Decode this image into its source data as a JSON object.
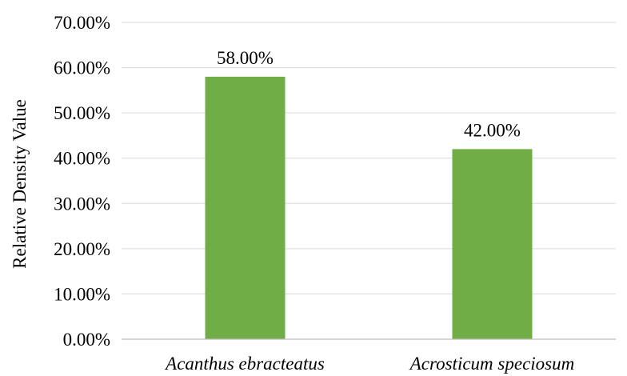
{
  "chart_data": {
    "type": "bar",
    "categories": [
      "Acanthus ebracteatus",
      "Acrosticum speciosum"
    ],
    "values": [
      0.58,
      0.42
    ],
    "data_labels": [
      "58.00%",
      "42.00%"
    ],
    "title": "",
    "xlabel": "",
    "ylabel": "Relative Density Value",
    "ylim": [
      0,
      0.7
    ],
    "y_ticks": [
      0,
      0.1,
      0.2,
      0.3,
      0.4,
      0.5,
      0.6,
      0.7
    ],
    "y_tick_labels": [
      "0.00%",
      "10.00%",
      "20.00%",
      "30.00%",
      "40.00%",
      "50.00%",
      "60.00%",
      "70.00%"
    ],
    "grid": true,
    "legend": "none",
    "colors": {
      "bar": "#70ad47",
      "grid": "#d9d9d9",
      "axis": "#bfbfbf"
    }
  }
}
